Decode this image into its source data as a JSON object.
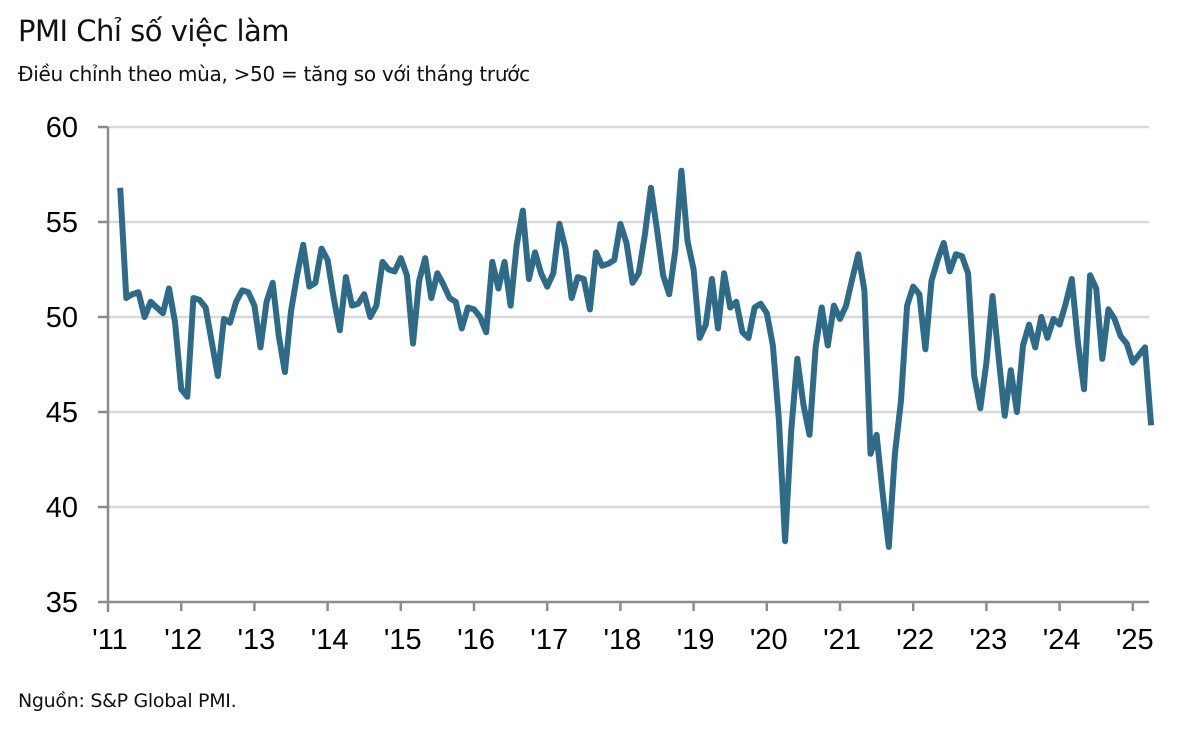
{
  "header": {
    "title": "PMI Chỉ số việc làm",
    "subtitle": "Điều chỉnh theo mùa, >50 = tăng so với tháng trước"
  },
  "footer": {
    "source": "Nguồn: S&P Global PMI."
  },
  "colors": {
    "line": "#2e6b88",
    "grid": "#d9d9d9",
    "axis": "#8c8c8c"
  },
  "chart_data": {
    "type": "line",
    "title": "PMI Chỉ số việc làm",
    "subtitle": "Điều chỉnh theo mùa, >50 = tăng so với tháng trước",
    "xlabel": "",
    "ylabel": "",
    "ylim": [
      35,
      60
    ],
    "yticks": [
      35,
      40,
      45,
      50,
      55,
      60
    ],
    "ytick_labels": [
      "35",
      "40",
      "45",
      "50",
      "55",
      "60"
    ],
    "xlim": [
      "2011-01",
      "2025-04"
    ],
    "xticks": [
      "2011-01",
      "2012-01",
      "2013-01",
      "2014-01",
      "2015-01",
      "2016-01",
      "2017-01",
      "2018-01",
      "2019-01",
      "2020-01",
      "2021-01",
      "2022-01",
      "2023-01",
      "2024-01",
      "2025-01"
    ],
    "xtick_labels": [
      "'11",
      "'12",
      "'13",
      "'14",
      "'15",
      "'16",
      "'17",
      "'18",
      "'19",
      "'20",
      "'21",
      "'22",
      "'23",
      "'24",
      "'25"
    ],
    "grid": true,
    "legend": "none",
    "source": "Nguồn: S&P Global PMI.",
    "series": [
      {
        "name": "PMI Chỉ số việc làm",
        "start": "2011-03",
        "frequency": "monthly",
        "values": [
          56.8,
          51.0,
          51.2,
          51.3,
          50.0,
          50.8,
          50.5,
          50.2,
          51.5,
          49.7,
          46.2,
          45.8,
          51.0,
          50.9,
          50.5,
          48.7,
          46.9,
          49.9,
          49.7,
          50.8,
          51.4,
          51.3,
          50.6,
          48.4,
          50.8,
          51.8,
          49.0,
          47.1,
          50.3,
          52.2,
          53.8,
          51.6,
          51.8,
          53.6,
          53.0,
          51.0,
          49.3,
          52.1,
          50.6,
          50.7,
          51.2,
          50.0,
          50.6,
          52.9,
          52.5,
          52.4,
          53.1,
          52.2,
          48.6,
          51.9,
          53.1,
          51.0,
          52.3,
          51.7,
          51.0,
          50.8,
          49.4,
          50.5,
          50.4,
          50.0,
          49.2,
          52.9,
          51.5,
          52.9,
          50.6,
          53.8,
          55.6,
          52.0,
          53.4,
          52.3,
          51.6,
          52.3,
          54.9,
          53.6,
          51.0,
          52.1,
          52.0,
          50.4,
          53.4,
          52.7,
          52.8,
          53.0,
          54.9,
          53.9,
          51.8,
          52.3,
          54.3,
          56.8,
          54.6,
          52.2,
          51.2,
          53.5,
          57.7,
          54.0,
          52.5,
          48.9,
          49.6,
          52.0,
          49.4,
          52.3,
          50.5,
          50.8,
          49.2,
          48.9,
          50.5,
          50.7,
          50.2,
          48.5,
          44.5,
          38.2,
          44.0,
          47.8,
          45.4,
          43.8,
          48.4,
          50.5,
          48.5,
          50.6,
          49.9,
          50.6,
          52.0,
          53.3,
          51.4,
          42.8,
          43.8,
          40.7,
          37.9,
          42.8,
          45.6,
          50.6,
          51.6,
          51.2,
          48.3,
          51.9,
          53.0,
          53.9,
          52.4,
          53.3,
          53.2,
          52.3,
          46.9,
          45.2,
          47.6,
          51.1,
          47.9,
          44.8,
          47.2,
          45.0,
          48.5,
          49.6,
          48.4,
          50.0,
          48.9,
          49.9,
          49.6,
          50.7,
          52.0,
          48.7,
          46.2,
          52.2,
          51.5,
          47.8,
          50.4,
          49.9,
          49.0,
          48.6,
          47.6,
          48.0,
          48.4,
          44.3
        ]
      }
    ]
  }
}
